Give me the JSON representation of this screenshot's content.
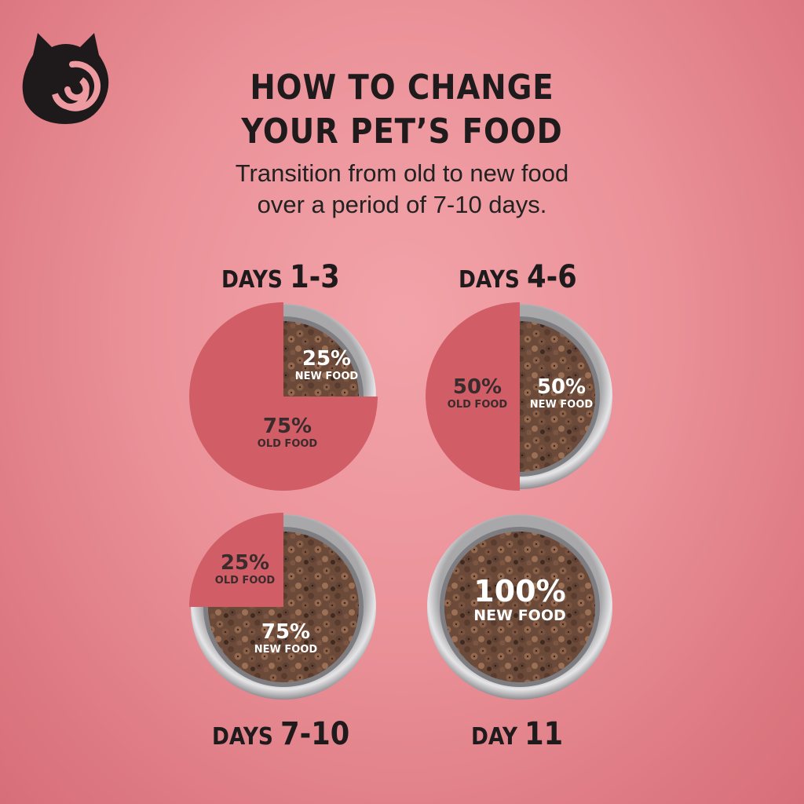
{
  "logo": {
    "icon": "cat-swirl-logo"
  },
  "header": {
    "title_line1": "HOW TO CHANGE",
    "title_line2": "YOUR PET’S FOOD",
    "subtitle_line1": "Transition from old to new food",
    "subtitle_line2": "over a period of 7-10 days."
  },
  "stages": [
    {
      "word": "DAYS ",
      "num": "1-3",
      "new_pct": "25%",
      "new_label": "NEW FOOD",
      "old_pct": "75%",
      "old_label": "OLD FOOD",
      "new_fraction": 0.25
    },
    {
      "word": "DAYS ",
      "num": "4-6",
      "new_pct": "50%",
      "new_label": "NEW FOOD",
      "old_pct": "50%",
      "old_label": "OLD FOOD",
      "new_fraction": 0.5
    },
    {
      "word": "DAYS ",
      "num": "7-10",
      "new_pct": "75%",
      "new_label": "NEW FOOD",
      "old_pct": "25%",
      "old_label": "OLD FOOD",
      "new_fraction": 0.75
    },
    {
      "word": "DAY ",
      "num": "11",
      "new_pct": "100%",
      "new_label": "NEW FOOD",
      "new_fraction": 1.0
    }
  ],
  "colors": {
    "old_food": "#d15d67",
    "kibble": "#6b4a3a",
    "bowl_rim": "#c9c9cb",
    "text_dark": "#1f1a1b",
    "text_light": "#ffffff",
    "text_old": "#3a2b2c"
  }
}
